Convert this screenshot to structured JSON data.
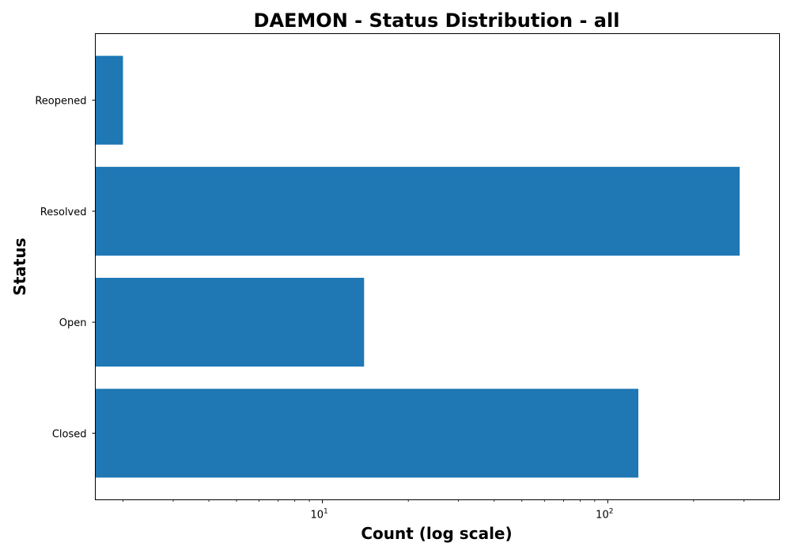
{
  "chart_data": {
    "type": "bar",
    "orientation": "horizontal",
    "title": "DAEMON - Status Distribution - all",
    "xlabel": "Count (log scale)",
    "ylabel": "Status",
    "x_scale": "log",
    "categories": [
      "Closed",
      "Open",
      "Resolved",
      "Reopened"
    ],
    "values": [
      128,
      14,
      290,
      2
    ],
    "xlim": [
      1.6,
      400
    ],
    "major_ticks": [
      {
        "value": 10,
        "base": "10",
        "exp": "1"
      },
      {
        "value": 100,
        "base": "10",
        "exp": "2"
      }
    ],
    "minor_ticks": [
      2,
      3,
      4,
      5,
      6,
      7,
      8,
      9,
      20,
      30,
      40,
      50,
      60,
      70,
      80,
      90,
      200,
      300
    ],
    "bar_color": "#1f77b4",
    "grid": false,
    "legend": "none"
  }
}
